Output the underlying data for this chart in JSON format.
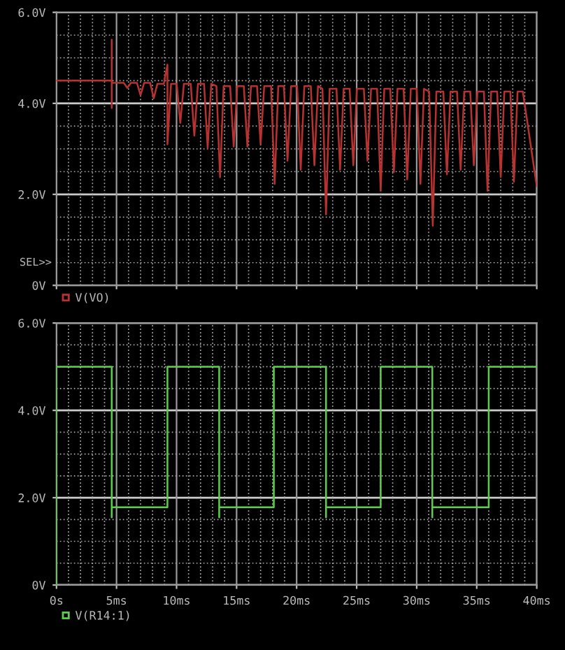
{
  "chart_data": [
    {
      "type": "line",
      "tick_labels": "y",
      "legend": "bottom",
      "grid": true,
      "marker": "none",
      "line_style": "solid",
      "xlim": [
        0,
        40
      ],
      "ylim": [
        0,
        6
      ],
      "yticks": [
        {
          "value": 0,
          "label": "0V"
        },
        {
          "value": 2,
          "label": "2.0V"
        },
        {
          "value": 4,
          "label": "4.0V"
        },
        {
          "value": 6,
          "label": "6.0V"
        }
      ],
      "xticks": [
        0,
        5,
        10,
        15,
        20,
        25,
        30,
        35,
        40
      ],
      "annotations": [
        "SEL>>"
      ],
      "series": [
        {
          "name": "V(VO)",
          "color": "#b83232",
          "x": [
            0,
            4.6,
            4.6,
            4.6,
            4.6,
            5.6,
            5.9,
            6.2,
            6.7,
            7.0,
            7.3,
            7.8,
            8.1,
            8.4,
            8.94,
            9.24,
            9.24,
            9.54,
            10.01,
            10.31,
            10.61,
            11.18,
            11.48,
            11.78,
            12.29,
            12.59,
            12.89,
            13.32,
            13.62,
            13.92,
            14.46,
            14.76,
            15.06,
            15.6,
            15.9,
            16.2,
            16.7,
            17.0,
            17.3,
            17.87,
            18.17,
            18.47,
            18.94,
            19.24,
            19.54,
            20.04,
            20.34,
            20.64,
            21.18,
            21.48,
            21.78,
            22.15,
            22.45,
            22.75,
            23.32,
            23.62,
            23.92,
            24.42,
            24.72,
            25.02,
            25.6,
            25.9,
            26.2,
            26.7,
            27.0,
            27.3,
            27.8,
            28.1,
            28.4,
            28.91,
            29.21,
            29.51,
            30.01,
            30.31,
            30.61,
            31.04,
            31.34,
            31.64,
            32.22,
            32.52,
            32.82,
            33.36,
            33.66,
            33.96,
            34.46,
            34.76,
            35.06,
            35.6,
            35.9,
            36.2,
            36.7,
            37.0,
            37.3,
            37.8,
            38.1,
            38.4,
            38.84,
            40
          ],
          "values": [
            4.5,
            4.5,
            5.4,
            3.9,
            4.45,
            4.45,
            4.34,
            4.45,
            4.45,
            4.18,
            4.45,
            4.45,
            4.11,
            4.43,
            4.43,
            4.85,
            3.1,
            4.43,
            4.43,
            3.57,
            4.43,
            4.43,
            3.29,
            4.43,
            4.43,
            3.02,
            4.43,
            4.38,
            2.38,
            4.38,
            4.38,
            3.05,
            4.38,
            4.38,
            3.05,
            4.38,
            4.38,
            3.1,
            4.38,
            4.38,
            2.23,
            4.38,
            4.38,
            2.74,
            4.38,
            4.38,
            2.54,
            4.38,
            4.38,
            2.64,
            4.38,
            4.32,
            1.56,
            4.32,
            4.32,
            2.54,
            4.32,
            4.32,
            2.64,
            4.32,
            4.32,
            2.74,
            4.32,
            4.32,
            2.08,
            4.32,
            4.32,
            2.49,
            4.32,
            4.32,
            2.33,
            4.32,
            4.32,
            2.23,
            4.32,
            4.26,
            1.31,
            4.26,
            4.26,
            2.44,
            4.26,
            4.26,
            2.54,
            4.26,
            4.26,
            2.64,
            4.26,
            4.26,
            2.08,
            4.26,
            4.26,
            2.38,
            4.26,
            4.26,
            2.28,
            4.26,
            4.26,
            2.18
          ]
        }
      ]
    },
    {
      "type": "line",
      "legend": "bottom",
      "grid": true,
      "marker": "none",
      "line_style": "solid",
      "xlim": [
        0,
        40
      ],
      "ylim": [
        0,
        6
      ],
      "yticks": [
        {
          "value": 0,
          "label": "0V"
        },
        {
          "value": 2,
          "label": "2.0V"
        },
        {
          "value": 4,
          "label": "4.0V"
        },
        {
          "value": 6,
          "label": "6.0V"
        }
      ],
      "xticks": [
        {
          "value": 0,
          "label": "0s"
        },
        {
          "value": 5,
          "label": "5ms"
        },
        {
          "value": 10,
          "label": "10ms"
        },
        {
          "value": 15,
          "label": "15ms"
        },
        {
          "value": 20,
          "label": "20ms"
        },
        {
          "value": 25,
          "label": "25ms"
        },
        {
          "value": 30,
          "label": "30ms"
        },
        {
          "value": 35,
          "label": "35ms"
        },
        {
          "value": 40,
          "label": "40ms"
        }
      ],
      "series": [
        {
          "name": "V(R14:1)",
          "color": "#5ad04a",
          "x": [
            0,
            0,
            4.6,
            4.6,
            4.6,
            9.24,
            9.24,
            13.55,
            13.55,
            13.55,
            18.1,
            18.1,
            22.45,
            22.45,
            22.45,
            27.0,
            27.0,
            31.3,
            31.3,
            31.3,
            36.0,
            36.0,
            40
          ],
          "values": [
            0,
            5,
            5,
            1.55,
            1.78,
            1.78,
            5,
            5,
            1.55,
            1.78,
            1.78,
            5,
            5,
            1.55,
            1.78,
            1.78,
            5,
            5,
            1.55,
            1.78,
            1.78,
            5,
            5
          ]
        }
      ]
    }
  ]
}
